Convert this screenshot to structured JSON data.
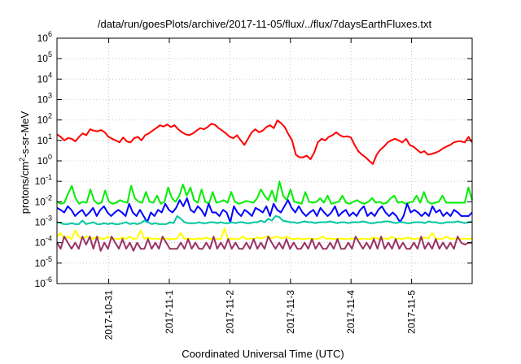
{
  "chart_data": {
    "type": "line",
    "title": "/data/run/goesPlots/archive/2017-11-05/flux/../flux/7daysEarthFluxes.txt",
    "xlabel": "Coordinated Universal Time (UTC)",
    "ylabel_parts": {
      "base": "protons/cm",
      "sup": "2",
      "rest": "-s-sr-MeV"
    },
    "y_scale": "log",
    "ylim": [
      1e-06,
      1000000.0
    ],
    "y_ticks": [
      {
        "base": "10",
        "exp": "-6"
      },
      {
        "base": "10",
        "exp": "-5"
      },
      {
        "base": "10",
        "exp": "-4"
      },
      {
        "base": "10",
        "exp": "-3"
      },
      {
        "base": "10",
        "exp": "-2"
      },
      {
        "base": "10",
        "exp": "-1"
      },
      {
        "base": "10",
        "exp": "0"
      },
      {
        "base": "10",
        "exp": "1"
      },
      {
        "base": "10",
        "exp": "2"
      },
      {
        "base": "10",
        "exp": "3"
      },
      {
        "base": "10",
        "exp": "4"
      },
      {
        "base": "10",
        "exp": "5"
      },
      {
        "base": "10",
        "exp": "6"
      }
    ],
    "xlim": [
      "2017-10-30T03:30",
      "2017-11-06T00:00"
    ],
    "x_ticks": [
      "2017-10-31",
      "2017-11-1",
      "2017-11-2",
      "2017-11-3",
      "2017-11-4",
      "2017-11-5"
    ],
    "x_tick_dates": [
      "2017-10-31T00:00",
      "2017-11-01T00:00",
      "2017-11-02T00:00",
      "2017-11-03T00:00",
      "2017-11-04T00:00",
      "2017-11-05T00:00"
    ],
    "grid": true,
    "legend": "none",
    "series": [
      {
        "color": "#ff0000",
        "x_start": "2017-10-30T03:30",
        "x_end": "2017-11-06T00:00",
        "values": [
          20,
          15,
          10,
          13,
          12,
          9,
          15,
          22,
          18,
          35,
          30,
          28,
          32,
          25,
          15,
          12,
          10,
          8,
          14,
          9,
          8,
          13,
          15,
          10,
          18,
          22,
          30,
          40,
          55,
          48,
          60,
          45,
          55,
          35,
          25,
          20,
          18,
          22,
          30,
          40,
          35,
          45,
          65,
          58,
          40,
          30,
          22,
          15,
          13,
          18,
          10,
          6,
          12,
          25,
          35,
          25,
          30,
          45,
          55,
          40,
          95,
          70,
          45,
          20,
          10,
          2,
          1.5,
          1.5,
          1.8,
          1.2,
          2.5,
          8,
          12,
          10,
          15,
          18,
          25,
          18,
          15,
          16,
          14,
          6,
          3,
          2,
          1.5,
          1,
          0.7,
          2,
          3.5,
          5,
          8,
          10,
          12,
          10,
          8,
          12,
          6,
          5,
          3.5,
          2.5,
          3,
          2,
          2.2,
          2.5,
          3,
          4,
          5,
          6,
          8,
          9,
          9,
          8,
          15,
          8
        ]
      },
      {
        "color": "#00ee00",
        "x_start": "2017-10-30T03:30",
        "x_end": "2017-11-06T00:00",
        "values": [
          0.01,
          0.008,
          0.009,
          0.025,
          0.06,
          0.015,
          0.008,
          0.01,
          0.009,
          0.04,
          0.012,
          0.008,
          0.009,
          0.035,
          0.01,
          0.008,
          0.009,
          0.012,
          0.01,
          0.009,
          0.06,
          0.015,
          0.01,
          0.009,
          0.03,
          0.01,
          0.009,
          0.02,
          0.008,
          0.01,
          0.05,
          0.015,
          0.01,
          0.02,
          0.07,
          0.02,
          0.05,
          0.012,
          0.009,
          0.04,
          0.01,
          0.008,
          0.03,
          0.009,
          0.01,
          0.012,
          0.009,
          0.03,
          0.01,
          0.008,
          0.009,
          0.011,
          0.01,
          0.009,
          0.015,
          0.04,
          0.02,
          0.012,
          0.035,
          0.01,
          0.1,
          0.02,
          0.012,
          0.04,
          0.01,
          0.009,
          0.008,
          0.03,
          0.01,
          0.009,
          0.01,
          0.015,
          0.009,
          0.02,
          0.008,
          0.009,
          0.01,
          0.02,
          0.009,
          0.008,
          0.01,
          0.012,
          0.009,
          0.008,
          0.01,
          0.015,
          0.009,
          0.01,
          0.008,
          0.009,
          0.015,
          0.02,
          0.009,
          0.01,
          0.008,
          0.009,
          0.01,
          0.02,
          0.009,
          0.03,
          0.01,
          0.008,
          0.009,
          0.01,
          0.02,
          0.009,
          0.009,
          0.009,
          0.009,
          0.009,
          0.009,
          0.05,
          0.012
        ]
      },
      {
        "color": "#0000ff",
        "x_start": "2017-10-30T03:30",
        "x_end": "2017-11-06T00:00",
        "values": [
          0.005,
          0.004,
          0.003,
          0.006,
          0.004,
          0.002,
          0.003,
          0.004,
          0.002,
          0.003,
          0.005,
          0.002,
          0.004,
          0.006,
          0.003,
          0.002,
          0.003,
          0.004,
          0.003,
          0.002,
          0.008,
          0.003,
          0.002,
          0.004,
          0.002,
          0.001,
          0.003,
          0.002,
          0.004,
          0.003,
          0.008,
          0.004,
          0.003,
          0.005,
          0.012,
          0.006,
          0.015,
          0.004,
          0.003,
          0.006,
          0.004,
          0.002,
          0.008,
          0.003,
          0.003,
          0.002,
          0.004,
          0.003,
          0.001,
          0.006,
          0.003,
          0.002,
          0.004,
          0.003,
          0.002,
          0.005,
          0.004,
          0.003,
          0.006,
          0.002,
          0.008,
          0.004,
          0.003,
          0.006,
          0.012,
          0.005,
          0.003,
          0.006,
          0.003,
          0.002,
          0.003,
          0.004,
          0.002,
          0.005,
          0.003,
          0.002,
          0.003,
          0.006,
          0.002,
          0.003,
          0.004,
          0.002,
          0.003,
          0.002,
          0.004,
          0.006,
          0.002,
          0.003,
          0.002,
          0.004,
          0.006,
          0.003,
          0.002,
          0.003,
          0.002,
          0.001,
          0.002,
          0.008,
          0.003,
          0.004,
          0.003,
          0.002,
          0.003,
          0.002,
          0.006,
          0.003,
          0.004,
          0.002,
          0.003,
          0.002,
          0.004,
          0.003,
          0.002,
          0.002,
          0.002,
          0.003
        ]
      },
      {
        "color": "#00c8a0",
        "x_start": "2017-10-30T03:30",
        "x_end": "2017-11-06T00:00",
        "values": [
          0.001,
          0.0009,
          0.0008,
          0.0008,
          0.0009,
          0.0008,
          0.0008,
          0.0012,
          0.0008,
          0.0009,
          0.001,
          0.0008,
          0.0008,
          0.0009,
          0.0008,
          0.0009,
          0.0008,
          0.0008,
          0.0009,
          0.001,
          0.0008,
          0.0009,
          0.0008,
          0.0009,
          0.0012,
          0.001,
          0.0008,
          0.0009,
          0.0008,
          0.0008,
          0.0008,
          0.001,
          0.0009,
          0.002,
          0.0015,
          0.001,
          0.0009,
          0.0009,
          0.0009,
          0.001,
          0.0009,
          0.0009,
          0.001,
          0.001,
          0.0009,
          0.001,
          0.0009,
          0.0009,
          0.001,
          0.0009,
          0.001,
          0.001,
          0.0009,
          0.0009,
          0.001,
          0.001,
          0.0012,
          0.001,
          0.0015,
          0.0012,
          0.002,
          0.0018,
          0.0012,
          0.0011,
          0.001,
          0.001,
          0.0009,
          0.001,
          0.0011,
          0.001,
          0.001,
          0.0009,
          0.001,
          0.001,
          0.001,
          0.0011,
          0.001,
          0.0009,
          0.001,
          0.001,
          0.0009,
          0.001,
          0.001,
          0.001,
          0.0011,
          0.001,
          0.0009,
          0.0009,
          0.001,
          0.001,
          0.0011,
          0.0011,
          0.001,
          0.0009,
          0.001,
          0.001,
          0.0009,
          0.0009,
          0.001,
          0.001,
          0.001,
          0.0009,
          0.0011,
          0.001,
          0.001,
          0.0009,
          0.0009,
          0.001,
          0.001,
          0.001,
          0.0011,
          0.001,
          0.0009,
          0.001,
          0.0011
        ]
      },
      {
        "color": "#ffff00",
        "x_start": "2017-10-30T03:30",
        "x_end": "2017-11-06T00:00",
        "values": [
          0.0002,
          0.0003,
          0.00015,
          0.0002,
          0.00015,
          0.0004,
          0.0002,
          0.00015,
          0.0002,
          0.00018,
          0.00015,
          0.0002,
          0.00016,
          0.00015,
          0.0002,
          0.00015,
          0.00016,
          0.00015,
          0.00018,
          0.00015,
          0.0002,
          0.00015,
          0.00016,
          0.0004,
          0.00015,
          0.00018,
          0.00015,
          0.00016,
          0.00015,
          0.00015,
          0.00016,
          0.00015,
          0.00015,
          0.00016,
          0.0003,
          0.00015,
          0.00016,
          0.00015,
          0.00015,
          0.00016,
          0.00015,
          0.00018,
          0.00015,
          0.00016,
          0.00015,
          0.00015,
          0.0005,
          0.00015,
          0.00016,
          0.00015,
          0.00015,
          0.0002,
          0.00015,
          0.00016,
          0.00015,
          0.00018,
          0.00016,
          0.00018,
          0.0002,
          0.00016,
          0.0002,
          0.00018,
          0.00016,
          0.0002,
          0.00016,
          0.00015,
          0.00016,
          0.00015,
          0.00015,
          0.00016,
          0.00015,
          0.00015,
          0.00016,
          0.0002,
          0.00015,
          0.00016,
          0.00015,
          0.00015,
          0.00016,
          0.00015,
          0.00015,
          0.00016,
          0.00015,
          0.00015,
          0.00016,
          0.00015,
          0.00015,
          0.00018,
          0.00016,
          0.00015,
          0.00016,
          0.00015,
          0.0002,
          0.00015,
          0.00016,
          0.00015,
          0.00018,
          0.00016,
          0.00015,
          0.00016,
          0.00015,
          0.00018,
          0.00016,
          0.0003,
          0.00016,
          0.00015,
          0.00016,
          0.0002,
          0.00015,
          0.00016,
          0.00015,
          0.00015,
          0.00016,
          0.00015,
          0.00016
        ]
      },
      {
        "color": "#993366",
        "x_start": "2017-10-30T03:30",
        "x_end": "2017-11-06T00:00",
        "values": [
          0.0001,
          5e-05,
          0.0002,
          0.0001,
          5e-05,
          0.0001,
          5e-05,
          0.0002,
          8e-05,
          0.0002,
          5e-05,
          0.0002,
          4e-05,
          0.0001,
          5e-05,
          0.0002,
          0.0001,
          5e-05,
          0.00015,
          5e-05,
          0.0001,
          4e-05,
          0.0001,
          5e-05,
          5e-05,
          0.00015,
          5e-05,
          0.0001,
          5e-05,
          0.0002,
          0.0001,
          5e-05,
          5e-05,
          5e-05,
          0.0001,
          5e-05,
          0.00015,
          5e-05,
          0.0001,
          5e-05,
          5e-05,
          0.0001,
          5e-05,
          0.0002,
          5e-05,
          0.0001,
          5e-05,
          0.00015,
          5e-05,
          0.0001,
          5e-05,
          5e-05,
          0.0001,
          5e-05,
          0.00015,
          5e-05,
          0.0001,
          5e-05,
          0.0002,
          0.0001,
          5e-05,
          0.0001,
          5e-05,
          0.00015,
          5e-05,
          0.0001,
          5e-05,
          5e-05,
          0.0001,
          5e-05,
          0.00015,
          5e-05,
          0.0001,
          5e-05,
          5e-05,
          0.0001,
          5e-05,
          0.00015,
          5e-05,
          5e-05,
          0.0001,
          5e-05,
          0.0002,
          0.0001,
          5e-05,
          0.0001,
          5e-05,
          0.00015,
          5e-05,
          0.0002,
          5e-05,
          0.0001,
          5e-05,
          0.00015,
          5e-05,
          0.0001,
          5e-05,
          5e-05,
          0.0001,
          5e-05,
          0.0002,
          5e-05,
          0.0001,
          5e-05,
          0.00015,
          5e-05,
          0.0001,
          5e-05,
          0.0001,
          5e-05,
          0.0002,
          0.0001,
          8e-05,
          0.0001,
          0.0001
        ]
      }
    ]
  }
}
